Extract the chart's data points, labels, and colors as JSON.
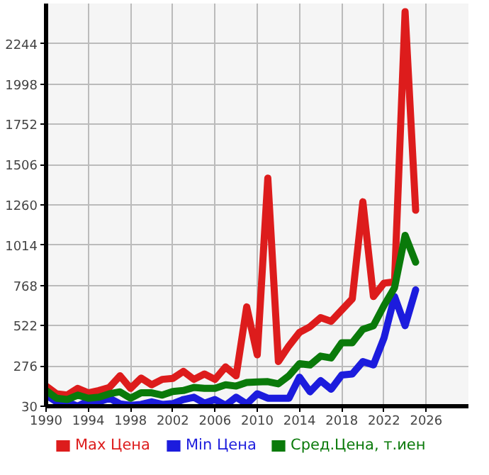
{
  "chart_data": {
    "type": "line",
    "x": [
      1990,
      1991,
      1992,
      1993,
      1994,
      1995,
      1996,
      1997,
      1998,
      1999,
      2000,
      2001,
      2002,
      2003,
      2004,
      2005,
      2006,
      2007,
      2008,
      2009,
      2010,
      2011,
      2012,
      2013,
      2014,
      2015,
      2016,
      2017,
      2018,
      2019,
      2020,
      2021,
      2022,
      2023,
      2024,
      2025
    ],
    "series": [
      {
        "name": "Max Цена",
        "color": "#dd1c1c",
        "values": [
          153,
          106,
          98,
          139,
          112,
          126,
          145,
          216,
          139,
          202,
          161,
          194,
          200,
          243,
          194,
          227,
          194,
          270,
          216,
          637,
          344,
          1424,
          303,
          399,
          481,
          516,
          571,
          549,
          618,
          686,
          1279,
          700,
          782,
          790,
          2440,
          1227
        ]
      },
      {
        "name": "Min Цена",
        "color": "#1c1cdd",
        "values": [
          98,
          57,
          57,
          30,
          63,
          57,
          79,
          44,
          36,
          41,
          57,
          41,
          46,
          71,
          85,
          49,
          71,
          36,
          85,
          44,
          106,
          79,
          79,
          79,
          208,
          118,
          186,
          134,
          221,
          227,
          303,
          282,
          446,
          700,
          522,
          741
        ]
      },
      {
        "name": "Сред.Цена, т.иен",
        "color": "#0a7a0a",
        "values": [
          126,
          79,
          71,
          98,
          79,
          85,
          106,
          118,
          79,
          112,
          112,
          98,
          120,
          126,
          145,
          139,
          139,
          161,
          153,
          175,
          178,
          180,
          167,
          216,
          290,
          282,
          336,
          325,
          418,
          418,
          500,
          522,
          645,
          754,
          1074,
          910
        ]
      }
    ],
    "xlim": [
      1990,
      2030
    ],
    "xticks": [
      1990,
      1994,
      1998,
      2002,
      2006,
      2010,
      2014,
      2018,
      2022,
      2026
    ],
    "ylim": [
      30,
      2490
    ],
    "yticks": [
      30,
      276,
      522,
      768,
      1014,
      1260,
      1506,
      1752,
      1998,
      2244
    ],
    "grid": true,
    "legend": "bottom",
    "marker": "none",
    "line_style": "solid"
  }
}
